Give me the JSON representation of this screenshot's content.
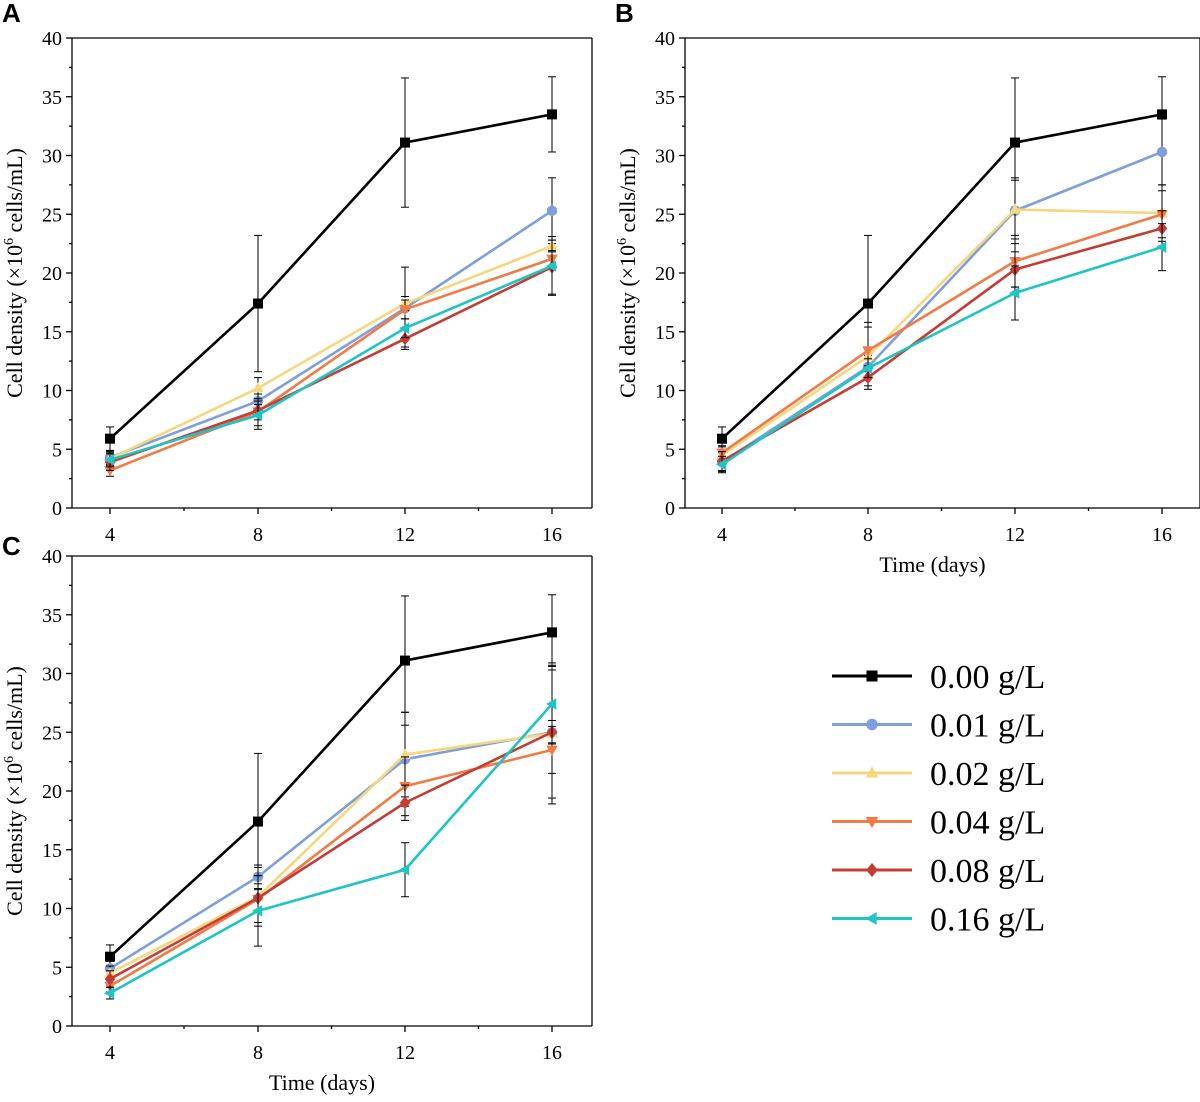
{
  "figure": {
    "legend": {
      "entries": [
        {
          "label": "0.00 g/L",
          "color": "#000000",
          "marker": "square"
        },
        {
          "label": "0.01 g/L",
          "color": "#7f9fdc",
          "marker": "circle"
        },
        {
          "label": "0.02 g/L",
          "color": "#f5d77f",
          "marker": "triangle-up"
        },
        {
          "label": "0.04 g/L",
          "color": "#f07b46",
          "marker": "triangle-down"
        },
        {
          "label": "0.08 g/L",
          "color": "#c43c35",
          "marker": "diamond"
        },
        {
          "label": "0.16 g/L",
          "color": "#1fc4c4",
          "marker": "triangle-left"
        }
      ]
    }
  },
  "chart_data": [
    {
      "panel": "A",
      "type": "line",
      "x": [
        4,
        8,
        12,
        16
      ],
      "xticks": [
        "4",
        "8",
        "12",
        "16"
      ],
      "ylim": [
        0,
        40
      ],
      "yticks": [
        "0",
        "5",
        "10",
        "15",
        "20",
        "25",
        "30",
        "35",
        "40"
      ],
      "xlabel": "",
      "ylabel_main": "Cell density (×10",
      "ylabel_sup": "6",
      "ylabel_tail": " cells/mL)",
      "series": [
        {
          "name": "0.00 g/L",
          "values": [
            5.9,
            17.4,
            31.1,
            33.5
          ],
          "err": [
            1.0,
            5.8,
            5.5,
            3.2
          ]
        },
        {
          "name": "0.01 g/L",
          "values": [
            4.3,
            9.1,
            17.0,
            25.3
          ],
          "err": [
            0.6,
            1.0,
            3.5,
            2.8
          ]
        },
        {
          "name": "0.02 g/L",
          "values": [
            4.2,
            10.2,
            17.4,
            22.3
          ],
          "err": [
            0.6,
            0.9,
            0.6,
            0.5
          ]
        },
        {
          "name": "0.04 g/L",
          "values": [
            3.2,
            8.2,
            16.9,
            21.2
          ],
          "err": [
            0.5,
            1.5,
            0.8,
            0.7
          ]
        },
        {
          "name": "0.08 g/L",
          "values": [
            3.9,
            8.3,
            14.4,
            20.5
          ],
          "err": [
            0.7,
            0.8,
            0.7,
            2.3
          ]
        },
        {
          "name": "0.16 g/L",
          "values": [
            4.1,
            7.9,
            15.3,
            20.6
          ],
          "err": [
            0.6,
            0.9,
            0.8,
            2.5
          ]
        }
      ]
    },
    {
      "panel": "B",
      "type": "line",
      "x": [
        4,
        8,
        12,
        16
      ],
      "xticks": [
        "4",
        "8",
        "12",
        "16"
      ],
      "ylim": [
        0,
        40
      ],
      "yticks": [
        "0",
        "5",
        "10",
        "15",
        "20",
        "25",
        "30",
        "35",
        "40"
      ],
      "xlabel": "Time (days)",
      "ylabel_main": "Cell density (×10",
      "ylabel_sup": "6",
      "ylabel_tail": " cells/mL)",
      "series": [
        {
          "name": "0.00 g/L",
          "values": [
            5.9,
            17.4,
            31.1,
            33.5
          ],
          "err": [
            1.0,
            5.8,
            5.5,
            3.2
          ]
        },
        {
          "name": "0.01 g/L",
          "values": [
            3.9,
            12.0,
            25.3,
            30.3
          ],
          "err": [
            0.8,
            1.0,
            2.8,
            2.8
          ]
        },
        {
          "name": "0.02 g/L",
          "values": [
            4.5,
            12.9,
            25.4,
            25.1
          ],
          "err": [
            0.7,
            2.5,
            2.5,
            2.4
          ]
        },
        {
          "name": "0.04 g/L",
          "values": [
            4.7,
            13.4,
            21.0,
            25.0
          ],
          "err": [
            0.6,
            2.4,
            2.2,
            2.0
          ]
        },
        {
          "name": "0.08 g/L",
          "values": [
            4.0,
            11.1,
            20.3,
            23.8
          ],
          "err": [
            0.8,
            1.0,
            1.5,
            1.5
          ]
        },
        {
          "name": "0.16 g/L",
          "values": [
            3.7,
            11.9,
            18.3,
            22.2
          ],
          "err": [
            0.7,
            0.8,
            2.3,
            2.0
          ]
        }
      ]
    },
    {
      "panel": "C",
      "type": "line",
      "x": [
        4,
        8,
        12,
        16
      ],
      "xticks": [
        "4",
        "8",
        "12",
        "16"
      ],
      "ylim": [
        0,
        40
      ],
      "yticks": [
        "0",
        "5",
        "10",
        "15",
        "20",
        "25",
        "30",
        "35",
        "40"
      ],
      "xlabel": "Time (days)",
      "ylabel_main": "Cell density (×10",
      "ylabel_sup": "6",
      "ylabel_tail": " cells/mL)",
      "series": [
        {
          "name": "0.00 g/L",
          "values": [
            5.9,
            17.4,
            31.1,
            33.5
          ],
          "err": [
            1.0,
            5.8,
            5.5,
            3.2
          ]
        },
        {
          "name": "0.01 g/L",
          "values": [
            4.9,
            12.7,
            22.7,
            25.0
          ],
          "err": [
            0.6,
            1.0,
            4.0,
            5.6
          ]
        },
        {
          "name": "0.02 g/L",
          "values": [
            4.5,
            11.0,
            23.1,
            24.9
          ],
          "err": [
            0.6,
            2.5,
            3.6,
            6.0
          ]
        },
        {
          "name": "0.04 g/L",
          "values": [
            3.4,
            10.8,
            20.4,
            23.5
          ],
          "err": [
            0.5,
            2.0,
            2.5,
            2.0
          ]
        },
        {
          "name": "0.08 g/L",
          "values": [
            4.0,
            10.9,
            19.0,
            25.0
          ],
          "err": [
            0.7,
            1.2,
            1.5,
            1.0
          ]
        },
        {
          "name": "0.16 g/L",
          "values": [
            2.8,
            9.8,
            13.3,
            27.4
          ],
          "err": [
            0.5,
            3.0,
            2.3,
            3.3
          ]
        }
      ]
    }
  ]
}
